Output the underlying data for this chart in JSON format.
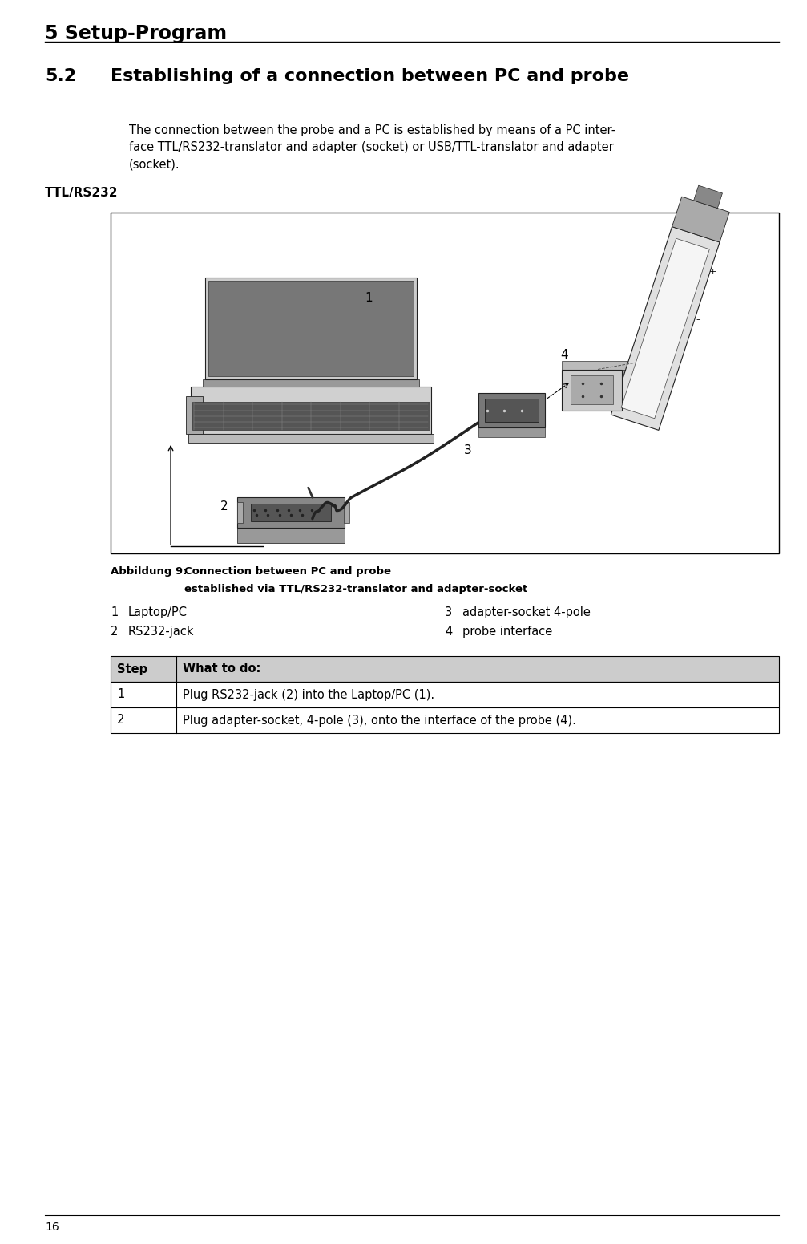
{
  "page_width": 10.07,
  "page_height": 15.51,
  "bg_color": "#ffffff",
  "header_title": "5 Setup-Program",
  "header_title_fontsize": 17,
  "section_number": "5.2",
  "section_title": "Establishing of a connection between PC and probe",
  "section_fontsize": 16,
  "body_text_line1": "The connection between the probe and a PC is established by means of a PC inter-",
  "body_text_line2": "face TTL/RS232-translator and adapter (socket) or USB/TTL-translator and adapter",
  "body_text_line3": "(socket).",
  "body_fontsize": 10.5,
  "ttl_label": "TTL/RS232",
  "ttl_fontsize": 11,
  "caption_label": "Abbildung 9:",
  "caption_line1": "Connection between PC and probe",
  "caption_line2": "established via TTL/RS232-translator and adapter-socket",
  "caption_fontsize": 9.5,
  "legend_col1": [
    {
      "num": "1",
      "text": "Laptop/PC"
    },
    {
      "num": "2",
      "text": "RS232-jack"
    }
  ],
  "legend_col2": [
    {
      "num": "3",
      "text": "adapter-socket 4-pole"
    },
    {
      "num": "4",
      "text": "probe interface"
    }
  ],
  "legend_fontsize": 10.5,
  "table_header": [
    "Step",
    "What to do:"
  ],
  "table_rows": [
    [
      "1",
      "Plug RS232-jack (2) into the Laptop/PC (1)."
    ],
    [
      "2",
      "Plug adapter-socket, 4-pole (3), onto the interface of the probe (4)."
    ]
  ],
  "table_fontsize": 10.5,
  "footer_page": "16",
  "footer_fontsize": 10
}
